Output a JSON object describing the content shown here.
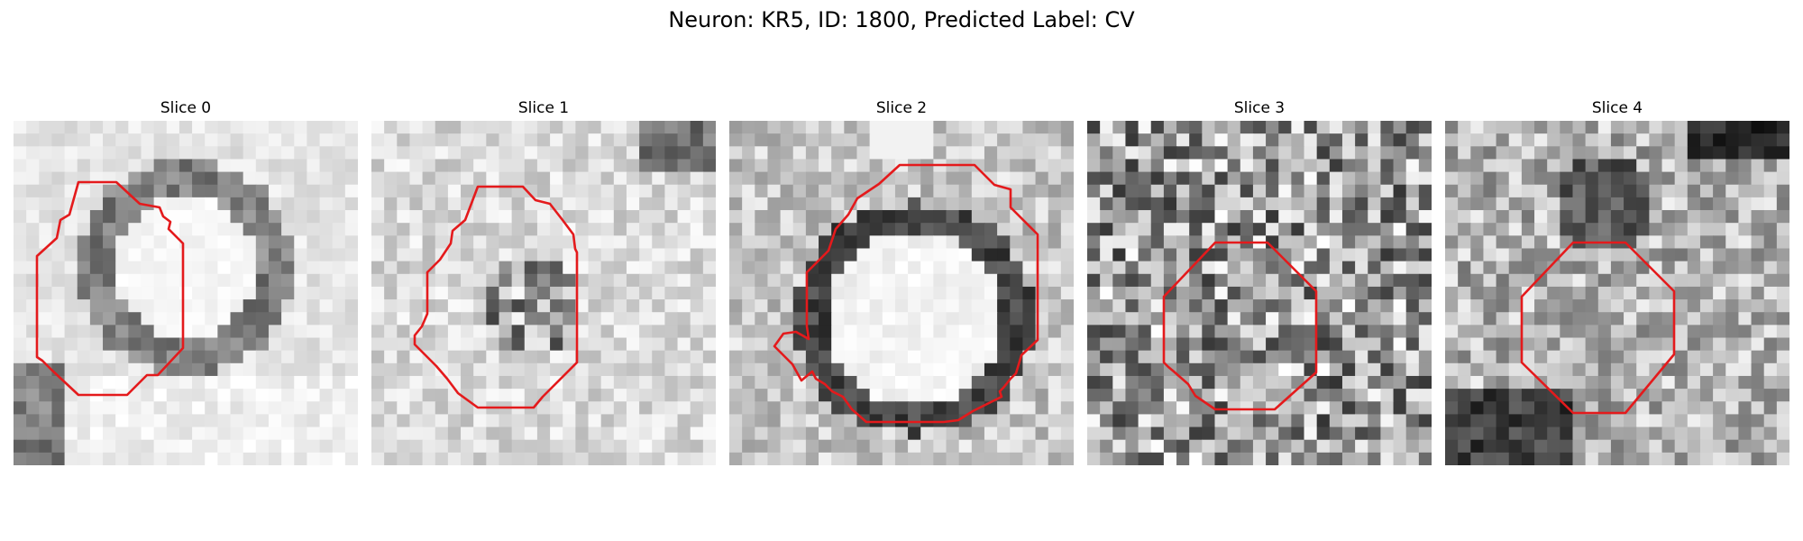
{
  "figure": {
    "title": "Neuron: KR5, ID: 1800, Predicted Label: CV"
  },
  "panels": [
    {
      "title": "Slice 0",
      "contour_color": "#e41a1c",
      "texture": "bright-ring"
    },
    {
      "title": "Slice 1",
      "contour_color": "#e41a1c",
      "texture": "light-mottled"
    },
    {
      "title": "Slice 2",
      "contour_color": "#e41a1c",
      "texture": "dark-ring-bright-center"
    },
    {
      "title": "Slice 3",
      "contour_color": "#e41a1c",
      "texture": "noisy"
    },
    {
      "title": "Slice 4",
      "contour_color": "#e41a1c",
      "texture": "dark-blotchy"
    }
  ]
}
